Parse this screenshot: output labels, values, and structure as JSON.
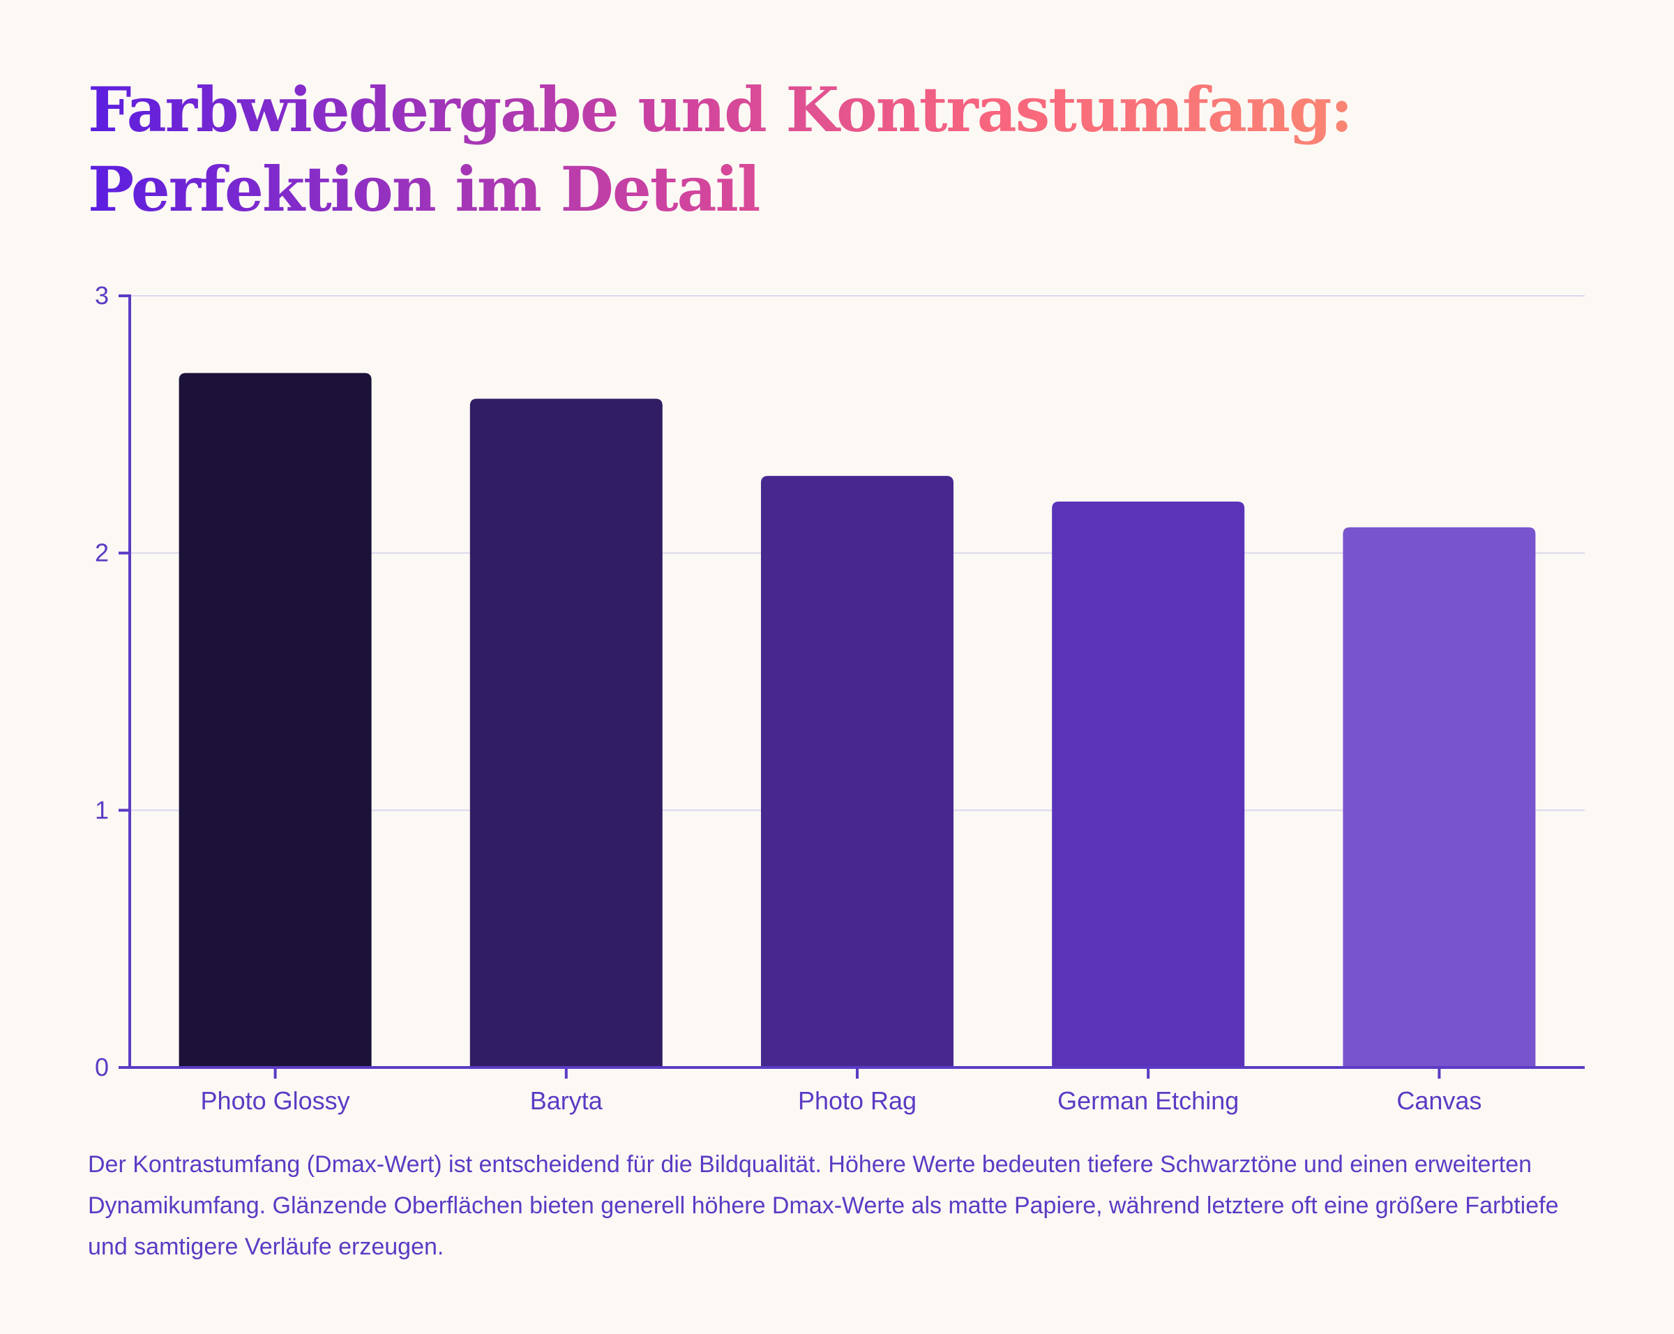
{
  "title": "Farbwiedergabe und Kontrastumfang: Perfektion im Detail",
  "caption": "Der Kontrastumfang (Dmax-Wert) ist entscheidend für die Bildqualität. Höhere Werte bedeuten tiefere Schwarztöne und einen erweiterten Dynamikumfang. Glänzende Oberflächen bieten generell höhere Dmax-Werte als matte Papiere, während letztere oft eine größere Farbtiefe und samtigere Verläufe erzeugen.",
  "colors": {
    "axis": "#5b3bc4",
    "grid": "#dcd6ee",
    "text": "#5b3bc4"
  },
  "chart_data": {
    "type": "bar",
    "title": "",
    "xlabel": "",
    "ylabel": "",
    "categories": [
      "Photo Glossy",
      "Baryta",
      "Photo Rag",
      "German Etching",
      "Canvas"
    ],
    "values": [
      2.7,
      2.6,
      2.3,
      2.2,
      2.1
    ],
    "bar_colors": [
      "#1c1238",
      "#311d63",
      "#46288f",
      "#5b33b9",
      "#7855cf"
    ],
    "ylim": [
      0,
      3
    ],
    "yticks": [
      "0",
      "1",
      "2",
      "3"
    ],
    "grid": true,
    "legend": "none"
  }
}
